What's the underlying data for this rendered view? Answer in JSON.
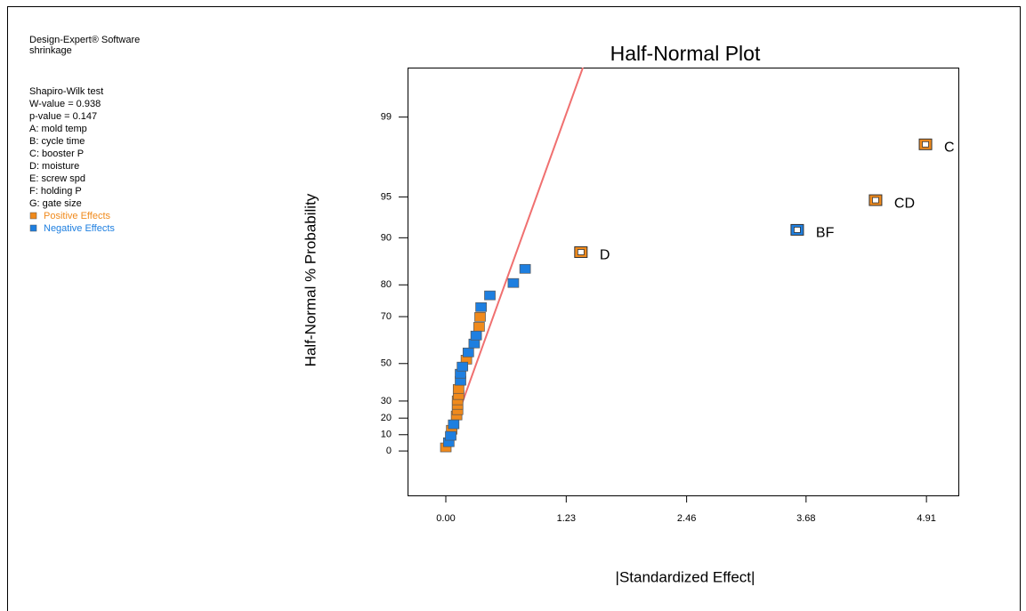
{
  "chart_data": {
    "type": "scatter",
    "title": "Half-Normal Plot",
    "x_label": "|Standardized Effect|",
    "y_label": "Half-Normal % Probability",
    "notes_top": [
      "Design-Expert® Software",
      "shrinkage"
    ],
    "notes": [
      "Shapiro-Wilk test",
      "W-value = 0.938",
      "p-value = 0.147",
      "A: mold temp",
      "B: cycle time",
      "C: booster P",
      "D: moisture",
      "E: screw spd",
      "F: holding P",
      "G: gate size"
    ],
    "xlim": [
      -0.391,
      5.236
    ],
    "xticks": [
      {
        "value": 0,
        "label": "0.00"
      },
      1.23,
      2.46,
      3.68,
      4.91
    ],
    "ylim": [
      -26.8,
      99.69
    ],
    "yticks": [
      0,
      10,
      20,
      30,
      50,
      70,
      80,
      90,
      95,
      99
    ],
    "y_scale": "half-normal",
    "series": [
      {
        "name": "Positive Effects",
        "color": "#f08a1c",
        "x": [
          0.0,
          0.06,
          0.11,
          0.12,
          0.12,
          0.12,
          0.13,
          0.13,
          0.21,
          0.34,
          0.35,
          1.38,
          4.39,
          4.9
        ],
        "values": [
          2.2,
          13.0,
          21.6,
          24.7,
          27.8,
          30.4,
          33.4,
          36.8,
          51.9,
          66.2,
          69.9,
          87.5,
          94.7,
          98.2
        ],
        "point_labels": [
          null,
          null,
          null,
          null,
          null,
          null,
          null,
          null,
          null,
          null,
          null,
          "D",
          "CD",
          "C"
        ]
      },
      {
        "name": "Negative Effects",
        "color": "#1e7fe0",
        "x": [
          0.03,
          0.05,
          0.08,
          0.15,
          0.15,
          0.17,
          0.23,
          0.29,
          0.31,
          0.36,
          0.45,
          0.69,
          0.81,
          3.59
        ],
        "values": [
          5.4,
          9.3,
          16.3,
          41.2,
          44.9,
          48.5,
          55.3,
          59.3,
          62.7,
          73.3,
          77.0,
          80.5,
          84.0,
          91.2
        ],
        "point_labels": [
          null,
          null,
          null,
          null,
          null,
          null,
          null,
          null,
          null,
          null,
          null,
          null,
          null,
          "BF"
        ]
      }
    ],
    "fit_line": {
      "color": "#f07070",
      "x": [
        0.16,
        1.4
      ],
      "y": [
        27.8,
        99.69
      ]
    }
  }
}
